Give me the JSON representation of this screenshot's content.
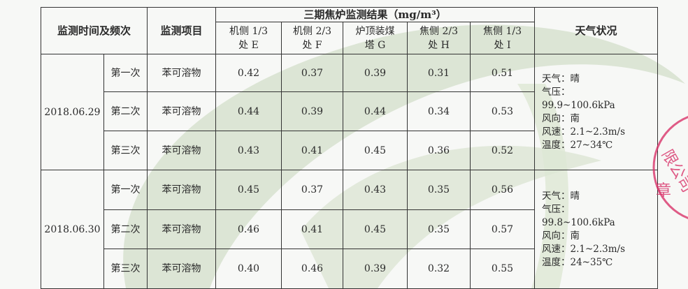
{
  "header": {
    "time_freq": "监测时间及频次",
    "item": "监测项目",
    "group": "三期焦炉监测结果（mg/m³）",
    "weather": "天气状况",
    "points": [
      [
        "机侧 1/3",
        "处 E"
      ],
      [
        "机侧 2/3",
        "处 F"
      ],
      [
        "炉顶装煤",
        "塔 G"
      ],
      [
        "焦侧 2/3",
        "处 H"
      ],
      [
        "焦侧 1/3",
        "处 I"
      ]
    ]
  },
  "blocks": [
    {
      "date": "2018.06.29",
      "rows": [
        {
          "freq": "第一次",
          "item": "苯可溶物",
          "values": [
            "0.42",
            "0.37",
            "0.39",
            "0.31",
            "0.51"
          ]
        },
        {
          "freq": "第二次",
          "item": "苯可溶物",
          "values": [
            "0.44",
            "0.39",
            "0.44",
            "0.34",
            "0.53"
          ]
        },
        {
          "freq": "第三次",
          "item": "苯可溶物",
          "values": [
            "0.43",
            "0.41",
            "0.45",
            "0.36",
            "0.52"
          ]
        }
      ],
      "weather": [
        "天气：晴",
        "气压：",
        "99.9~100.6kPa",
        "风向：南",
        "风速：2.1~2.3m/s",
        "温度：27~34℃"
      ]
    },
    {
      "date": "2018.06.30",
      "rows": [
        {
          "freq": "第一次",
          "item": "苯可溶物",
          "values": [
            "0.45",
            "0.37",
            "0.43",
            "0.35",
            "0.56"
          ]
        },
        {
          "freq": "第二次",
          "item": "苯可溶物",
          "values": [
            "0.46",
            "0.41",
            "0.45",
            "0.35",
            "0.57"
          ]
        },
        {
          "freq": "第三次",
          "item": "苯可溶物",
          "values": [
            "0.40",
            "0.46",
            "0.39",
            "0.32",
            "0.55"
          ]
        }
      ],
      "weather": [
        "天气：晴",
        "气压：",
        "99.8~100.6kPa",
        "风向：南",
        "风速：2.1~2.3m/s",
        "温度：24~35℃"
      ]
    }
  ],
  "stamp": {
    "text": "限公司 章",
    "color": "#d8336a"
  },
  "colors": {
    "watermark": "#cfdcc4"
  }
}
